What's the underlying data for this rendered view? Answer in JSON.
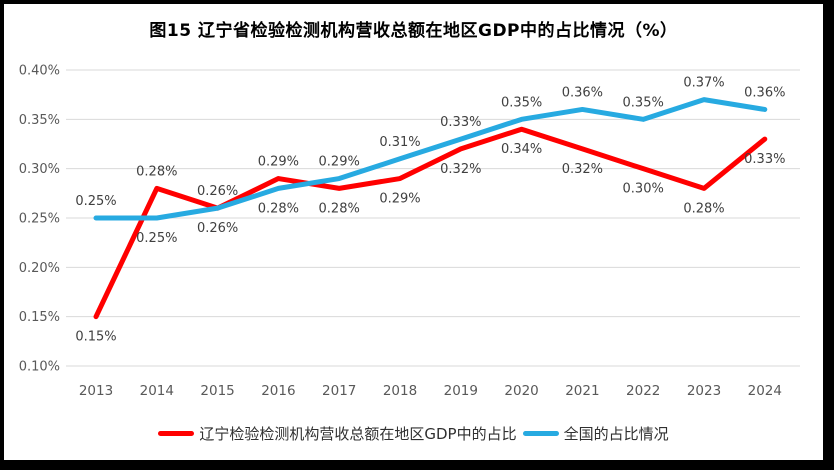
{
  "title": "图15 辽宁省检验检测机构营收总额在地区GDP中的占比情况（%）",
  "colors": {
    "frame_border": "#000000",
    "background": "#FFFFFF",
    "gridline": "#D9D9D9",
    "axis_text": "#595959",
    "data_label_text": "#404040",
    "legend_text": "#303030",
    "series_red": "#FF0000",
    "series_blue": "#27AAE1"
  },
  "chart_data": {
    "type": "line",
    "categories": [
      "2013",
      "2014",
      "2015",
      "2016",
      "2017",
      "2018",
      "2019",
      "2020",
      "2021",
      "2022",
      "2023",
      "2024"
    ],
    "series": [
      {
        "name": "辽宁检验检测机构营收总额在地区GDP中的占比",
        "color": "#FF0000",
        "values": [
          0.15,
          0.28,
          0.26,
          0.29,
          0.28,
          0.29,
          0.32,
          0.34,
          0.32,
          0.3,
          0.28,
          0.33
        ],
        "data_labels": [
          "0.15%",
          "0.28%",
          "0.26%",
          "0.29%",
          "0.28%",
          "0.29%",
          "0.32%",
          "0.34%",
          "0.32%",
          "0.30%",
          "0.28%",
          "0.33%"
        ],
        "label_positions": [
          "below",
          "above",
          "above",
          "above",
          "below",
          "below",
          "below",
          "below",
          "below",
          "below",
          "below",
          "below"
        ]
      },
      {
        "name": "全国的占比情况",
        "color": "#27AAE1",
        "values": [
          0.25,
          0.25,
          0.26,
          0.28,
          0.29,
          0.31,
          0.33,
          0.35,
          0.36,
          0.35,
          0.37,
          0.36
        ],
        "data_labels": [
          "0.25%",
          "0.25%",
          "0.26%",
          "0.28%",
          "0.29%",
          "0.31%",
          "0.33%",
          "0.35%",
          "0.36%",
          "0.35%",
          "0.37%",
          "0.36%"
        ],
        "label_positions": [
          "above",
          "below",
          "below",
          "below",
          "above",
          "above",
          "above",
          "above",
          "above",
          "above",
          "above",
          "above"
        ]
      }
    ],
    "yticks": [
      "0.40%",
      "0.35%",
      "0.30%",
      "0.25%",
      "0.20%",
      "0.15%",
      "0.10%"
    ],
    "ylim": [
      0.1,
      0.4
    ],
    "xlabel": "",
    "ylabel": "",
    "grid": true,
    "legend_position": "bottom"
  }
}
